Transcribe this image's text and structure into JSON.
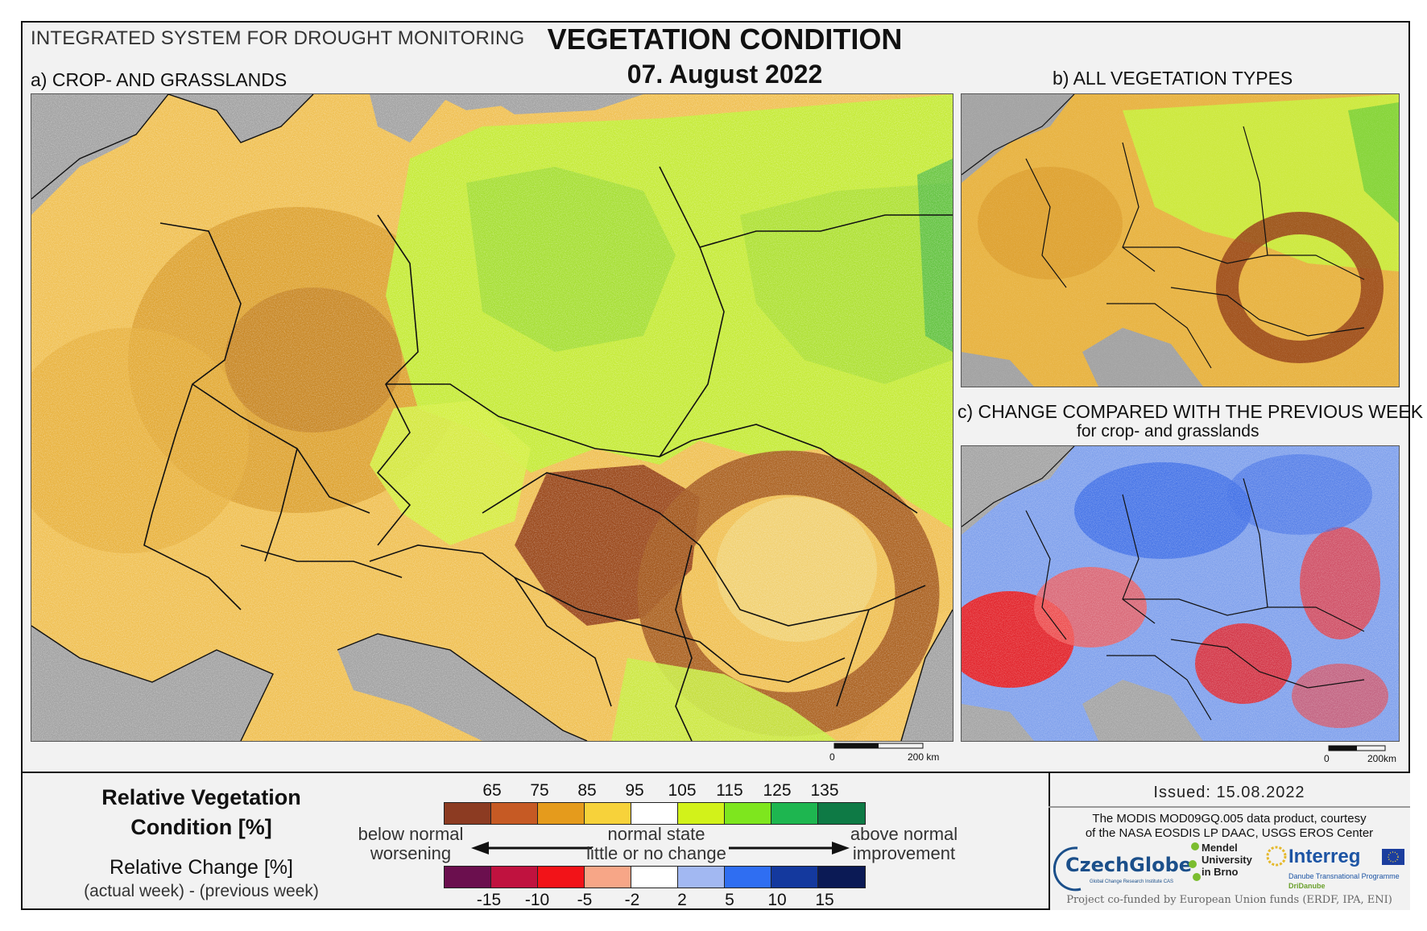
{
  "header": {
    "system_name": "INTEGRATED SYSTEM FOR DROUGHT MONITORING",
    "title": "VEGETATION CONDITION",
    "date": "07. August 2022"
  },
  "panels": {
    "a": {
      "title": "a) CROP- AND GRASSLANDS",
      "scale_zero": "0",
      "scale_label": "200 km"
    },
    "b": {
      "title": "b) ALL VEGETATION TYPES"
    },
    "c": {
      "title": "c) CHANGE COMPARED WITH THE PREVIOUS WEEK",
      "subtitle": "for crop- and grasslands",
      "scale_zero": "0",
      "scale_label": "200km"
    }
  },
  "legend": {
    "rvc_title_line1": "Relative Vegetation",
    "rvc_title_line2": "Condition [%]",
    "rc_title": "Relative Change [%]",
    "rc_sub": "(actual week) - (previous week)",
    "rvc_ticks": [
      "65",
      "75",
      "85",
      "95",
      "105",
      "115",
      "125",
      "135"
    ],
    "rvc_colors": [
      "#8c3b22",
      "#c65a24",
      "#e59b1c",
      "#f7d23a",
      "#ffffff",
      "#d2f21a",
      "#7ee61e",
      "#1eb650",
      "#0e7a45"
    ],
    "rc_ticks": [
      "-15",
      "-10",
      "-5",
      "-2",
      "2",
      "5",
      "10",
      "15"
    ],
    "rc_colors": [
      "#6b0f4e",
      "#c0123f",
      "#f21318",
      "#f7a687",
      "#ffffff",
      "#a2b8f2",
      "#2f6ef2",
      "#14399e",
      "#0b1a55"
    ],
    "left_label_1": "below normal",
    "left_label_2": "worsening",
    "center_label_1": "normal state",
    "center_label_2": "little or no change",
    "right_label_1": "above normal",
    "right_label_2": "improvement"
  },
  "info": {
    "issued": "Issued: 15.08.2022",
    "modis_line1": "The MODIS MOD09GQ.005 data product, courtesy",
    "modis_line2": "of the NASA EOSDIS LP DAAC, USGS EROS Center",
    "czechglobe": "CzechGlobe",
    "czechglobe_sub": "Global Change Research Institute CAS",
    "mendel_1": "Mendel",
    "mendel_2": "University",
    "mendel_3": "in Brno",
    "interreg": "Interreg",
    "interreg_sub": "Danube Transnational Programme",
    "dridanube": "DriDanube",
    "funded": "Project co-funded by European Union funds (ERDF, IPA, ENI)"
  }
}
